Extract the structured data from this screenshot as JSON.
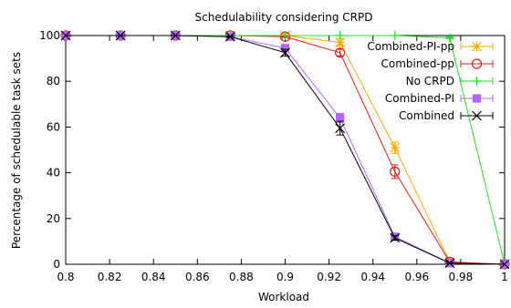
{
  "chart_data": {
    "type": "line",
    "title": "Schedulability considering CRPD",
    "xlabel": "Workload",
    "ylabel": "Percentage of schedulable task sets",
    "xlim": [
      0.8,
      1.0
    ],
    "ylim": [
      0,
      100
    ],
    "x_ticks": [
      "0.8",
      "0.82",
      "0.84",
      "0.86",
      "0.88",
      "0.9",
      "0.92",
      "0.94",
      "0.96",
      "0.98",
      "1"
    ],
    "y_ticks": [
      "0",
      "20",
      "40",
      "60",
      "80",
      "100"
    ],
    "grid": false,
    "legend_position": "top-right",
    "series": [
      {
        "name": "Combined-PI-pp",
        "color": "#FFA500",
        "marker": "asterisk",
        "points": [
          {
            "x": 0.8,
            "y": 100,
            "err": 0
          },
          {
            "x": 0.825,
            "y": 100,
            "err": 0
          },
          {
            "x": 0.85,
            "y": 100,
            "err": 0
          },
          {
            "x": 0.875,
            "y": 100,
            "err": 0
          },
          {
            "x": 0.9,
            "y": 100,
            "err": 0
          },
          {
            "x": 0.925,
            "y": 97,
            "err": 1.5
          },
          {
            "x": 0.95,
            "y": 51,
            "err": 2.5
          },
          {
            "x": 0.975,
            "y": 1,
            "err": 0.5
          },
          {
            "x": 1.0,
            "y": 0,
            "err": 0
          }
        ]
      },
      {
        "name": "Combined-pp",
        "color": "#E41A1C",
        "marker": "circle",
        "points": [
          {
            "x": 0.8,
            "y": 100,
            "err": 0
          },
          {
            "x": 0.825,
            "y": 100,
            "err": 0
          },
          {
            "x": 0.85,
            "y": 100,
            "err": 0
          },
          {
            "x": 0.875,
            "y": 100,
            "err": 0
          },
          {
            "x": 0.9,
            "y": 99.5,
            "err": 0.3
          },
          {
            "x": 0.925,
            "y": 92.5,
            "err": 1.5
          },
          {
            "x": 0.95,
            "y": 40.5,
            "err": 3
          },
          {
            "x": 0.975,
            "y": 1,
            "err": 0.5
          },
          {
            "x": 1.0,
            "y": 0,
            "err": 0
          }
        ]
      },
      {
        "name": "No CRPD",
        "color": "#22DD22",
        "marker": "plus",
        "points": [
          {
            "x": 0.8,
            "y": 100,
            "err": 0
          },
          {
            "x": 0.825,
            "y": 100,
            "err": 0
          },
          {
            "x": 0.85,
            "y": 100,
            "err": 0
          },
          {
            "x": 0.875,
            "y": 100,
            "err": 0
          },
          {
            "x": 0.9,
            "y": 100,
            "err": 0
          },
          {
            "x": 0.925,
            "y": 100,
            "err": 0
          },
          {
            "x": 0.95,
            "y": 100,
            "err": 0
          },
          {
            "x": 0.975,
            "y": 99,
            "err": 0.5
          },
          {
            "x": 1.0,
            "y": 0,
            "err": 0
          }
        ]
      },
      {
        "name": "Combined-PI",
        "color": "#B266FF",
        "marker": "square",
        "points": [
          {
            "x": 0.8,
            "y": 100,
            "err": 0
          },
          {
            "x": 0.825,
            "y": 100,
            "err": 0
          },
          {
            "x": 0.85,
            "y": 100,
            "err": 0
          },
          {
            "x": 0.875,
            "y": 99.5,
            "err": 0.3
          },
          {
            "x": 0.9,
            "y": 94.5,
            "err": 1
          },
          {
            "x": 0.925,
            "y": 64,
            "err": 2
          },
          {
            "x": 0.95,
            "y": 12,
            "err": 1
          },
          {
            "x": 0.975,
            "y": 0.5,
            "err": 0.3
          },
          {
            "x": 1.0,
            "y": 0,
            "err": 0
          }
        ]
      },
      {
        "name": "Combined",
        "color": "#000000",
        "marker": "cross",
        "points": [
          {
            "x": 0.8,
            "y": 100,
            "err": 0
          },
          {
            "x": 0.825,
            "y": 100,
            "err": 0
          },
          {
            "x": 0.85,
            "y": 100,
            "err": 0
          },
          {
            "x": 0.875,
            "y": 99.5,
            "err": 0.3
          },
          {
            "x": 0.9,
            "y": 92.5,
            "err": 1.5
          },
          {
            "x": 0.925,
            "y": 59.5,
            "err": 3
          },
          {
            "x": 0.95,
            "y": 11.5,
            "err": 1
          },
          {
            "x": 0.975,
            "y": 0.5,
            "err": 0.3
          },
          {
            "x": 1.0,
            "y": 0,
            "err": 0
          }
        ]
      }
    ]
  }
}
